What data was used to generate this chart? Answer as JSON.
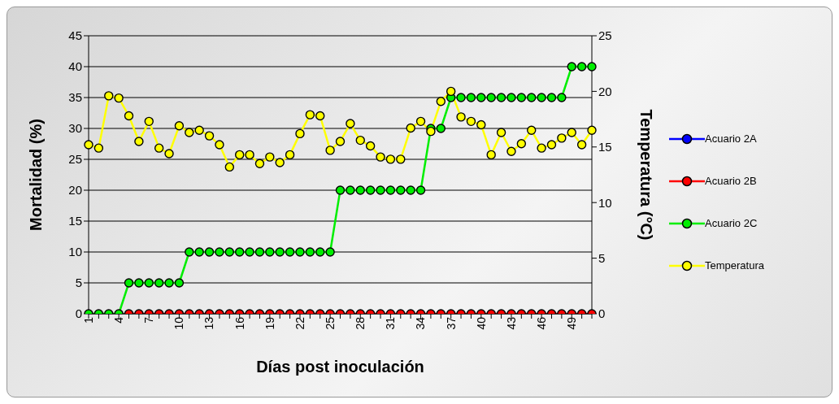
{
  "chart_data": {
    "type": "line",
    "xlabel": "Días post inoculación",
    "ylabel": "Mortalidad (%)",
    "y2label": "Temperatura (°C)",
    "categories": [
      "1",
      null,
      null,
      "4",
      null,
      null,
      "7",
      null,
      null,
      "10",
      null,
      null,
      "13",
      null,
      null,
      "16",
      null,
      null,
      "19",
      null,
      null,
      "22",
      null,
      null,
      "25",
      null,
      null,
      "28",
      null,
      null,
      "31",
      null,
      null,
      "34",
      null,
      null,
      "37",
      null,
      null,
      "40",
      null,
      null,
      "43",
      null,
      null,
      "46",
      null,
      null,
      "49",
      null,
      null
    ],
    "series": [
      {
        "name": "Acuario 2A",
        "color": "#0000ff",
        "values": [
          null,
          null,
          null,
          null,
          null,
          null,
          null,
          null,
          null,
          null,
          null,
          null,
          null,
          null,
          null,
          null,
          null,
          null,
          null,
          null,
          null,
          null,
          null,
          null,
          null,
          null,
          null,
          null,
          null,
          null,
          null,
          null,
          null,
          null,
          null,
          null,
          null,
          null,
          null,
          null,
          null,
          null,
          null,
          null,
          null,
          null,
          null,
          null,
          null,
          null,
          null
        ]
      },
      {
        "name": "Acuario 2B",
        "color": "#ff0000",
        "values": [
          null,
          null,
          null,
          null,
          0,
          0,
          0,
          0,
          0,
          0,
          0,
          0,
          0,
          0,
          0,
          0,
          0,
          0,
          0,
          0,
          0,
          0,
          0,
          0,
          0,
          0,
          0,
          0,
          0,
          0,
          0,
          0,
          0,
          0,
          0,
          0,
          0,
          0,
          0,
          0,
          0,
          0,
          0,
          0,
          0,
          0,
          0,
          0,
          0,
          0,
          0
        ]
      },
      {
        "name": "Acuario 2C",
        "color": "#00ee00",
        "values": [
          0,
          0,
          0,
          0,
          5,
          5,
          5,
          5,
          5,
          5,
          10,
          10,
          10,
          10,
          10,
          10,
          10,
          10,
          10,
          10,
          10,
          10,
          10,
          10,
          10,
          20,
          20,
          20,
          20,
          20,
          20,
          20,
          20,
          20,
          30,
          30,
          35,
          35,
          35,
          35,
          35,
          35,
          35,
          35,
          35,
          35,
          35,
          35,
          40,
          40,
          40
        ]
      },
      {
        "name": "Temperatura",
        "color": "#ffff00",
        "axis": "y2",
        "values": [
          15.2,
          14.9,
          19.6,
          19.4,
          17.8,
          15.5,
          17.3,
          14.9,
          14.4,
          16.9,
          16.3,
          16.5,
          16.0,
          15.2,
          13.2,
          14.3,
          14.3,
          13.5,
          14.1,
          13.6,
          14.3,
          16.2,
          17.9,
          17.8,
          14.7,
          15.5,
          17.1,
          15.6,
          15.1,
          14.1,
          13.9,
          13.9,
          16.7,
          17.3,
          16.4,
          19.1,
          20.0,
          17.7,
          17.3,
          17.0,
          14.3,
          16.3,
          14.6,
          15.3,
          16.5,
          14.9,
          15.2,
          15.8,
          16.3,
          15.2,
          16.5
        ]
      }
    ],
    "ylim": [
      0,
      45
    ],
    "yticks": [
      0,
      5,
      10,
      15,
      20,
      25,
      30,
      35,
      40,
      45
    ],
    "y2lim": [
      0,
      25
    ],
    "y2ticks": [
      0,
      5,
      10,
      15,
      20,
      25
    ],
    "grid": "y",
    "legend": "right",
    "marker": "circle",
    "line_style": "solid"
  }
}
